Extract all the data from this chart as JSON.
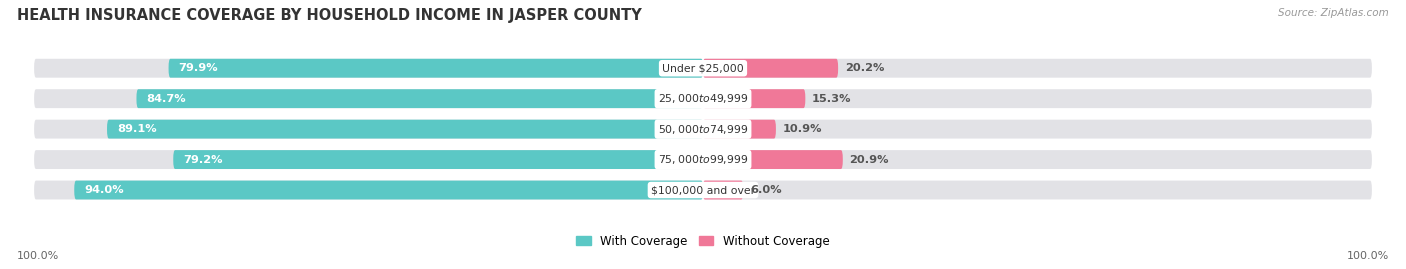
{
  "title": "HEALTH INSURANCE COVERAGE BY HOUSEHOLD INCOME IN JASPER COUNTY",
  "source": "Source: ZipAtlas.com",
  "categories": [
    "Under $25,000",
    "$25,000 to $49,999",
    "$50,000 to $74,999",
    "$75,000 to $99,999",
    "$100,000 and over"
  ],
  "with_coverage": [
    79.9,
    84.7,
    89.1,
    79.2,
    94.0
  ],
  "without_coverage": [
    20.2,
    15.3,
    10.9,
    20.9,
    6.0
  ],
  "coverage_color": "#5BC8C5",
  "no_coverage_color": "#F07898",
  "bar_bg_color": "#E2E2E6",
  "background_color": "#FFFFFF",
  "legend_coverage_label": "With Coverage",
  "legend_no_coverage_label": "Without Coverage",
  "x_left_label": "100.0%",
  "x_right_label": "100.0%",
  "title_fontsize": 10.5,
  "bar_height": 0.62,
  "total_width": 100.0
}
